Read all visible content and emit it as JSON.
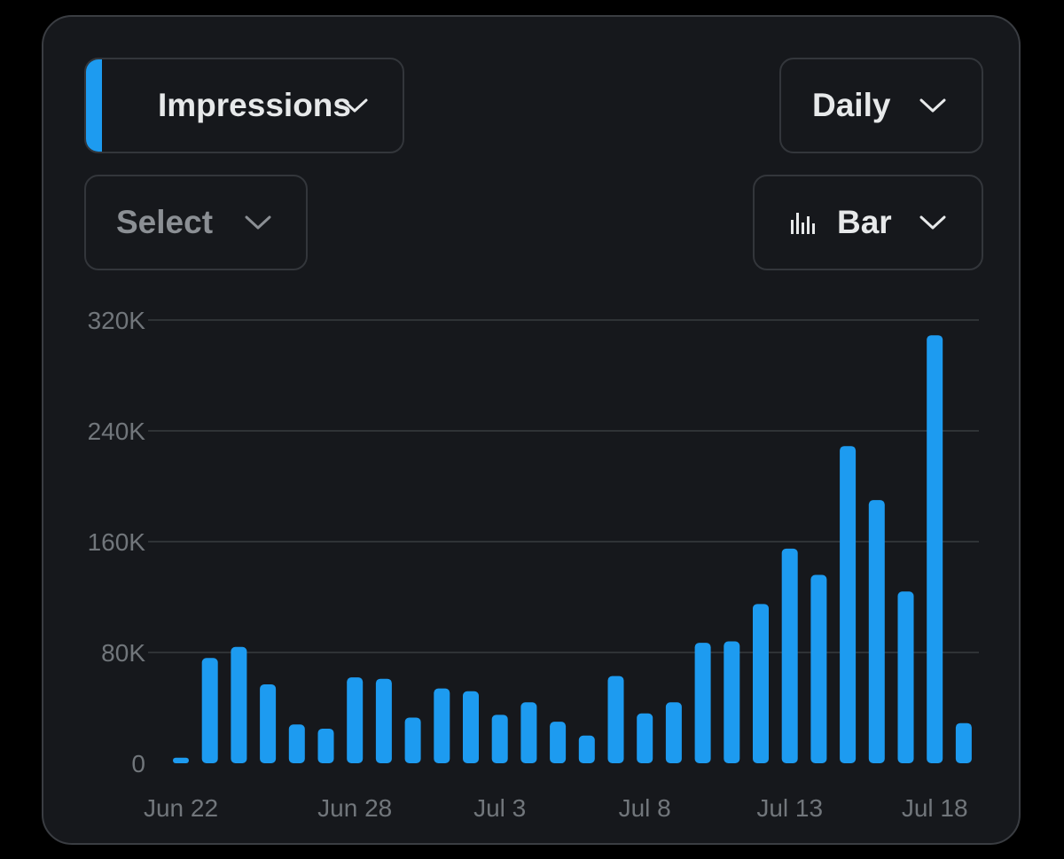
{
  "controls": {
    "metric_label": "Impressions",
    "period_label": "Daily",
    "compare_placeholder": "Select",
    "chart_type_label": "Bar",
    "chart_type_icon": "bar-chart-icon",
    "dropdown_icon": "chevron-down-icon"
  },
  "colors": {
    "accent": "#1d9bf0",
    "background": "#16181c",
    "gridline": "#2f3336",
    "text_primary": "#e7e9ea",
    "text_secondary": "#71767b"
  },
  "chart_data": {
    "type": "bar",
    "title": "",
    "xlabel": "",
    "ylabel": "",
    "ylim": [
      0,
      320000
    ],
    "yticks": [
      {
        "value": 0,
        "label": "0"
      },
      {
        "value": 80000,
        "label": "80K"
      },
      {
        "value": 160000,
        "label": "160K"
      },
      {
        "value": 240000,
        "label": "240K"
      },
      {
        "value": 320000,
        "label": "320K"
      }
    ],
    "xticks": [
      {
        "index": 0,
        "label": "Jun 22"
      },
      {
        "index": 6,
        "label": "Jun 28"
      },
      {
        "index": 11,
        "label": "Jul 3"
      },
      {
        "index": 16,
        "label": "Jul 8"
      },
      {
        "index": 21,
        "label": "Jul 13"
      },
      {
        "index": 26,
        "label": "Jul 18"
      }
    ],
    "grid": true,
    "categories": [
      "Jun 22",
      "Jun 23",
      "Jun 24",
      "Jun 25",
      "Jun 26",
      "Jun 27",
      "Jun 28",
      "Jun 29",
      "Jun 30",
      "Jul 1",
      "Jul 2",
      "Jul 3",
      "Jul 4",
      "Jul 5",
      "Jul 6",
      "Jul 7",
      "Jul 8",
      "Jul 9",
      "Jul 10",
      "Jul 11",
      "Jul 12",
      "Jul 13",
      "Jul 14",
      "Jul 15",
      "Jul 16",
      "Jul 17",
      "Jul 18",
      "Jul 19"
    ],
    "values": [
      4000,
      76000,
      84000,
      57000,
      28000,
      25000,
      62000,
      61000,
      33000,
      54000,
      52000,
      35000,
      44000,
      30000,
      20000,
      63000,
      36000,
      44000,
      87000,
      88000,
      115000,
      155000,
      136000,
      229000,
      190000,
      124000,
      309000,
      29000
    ]
  }
}
